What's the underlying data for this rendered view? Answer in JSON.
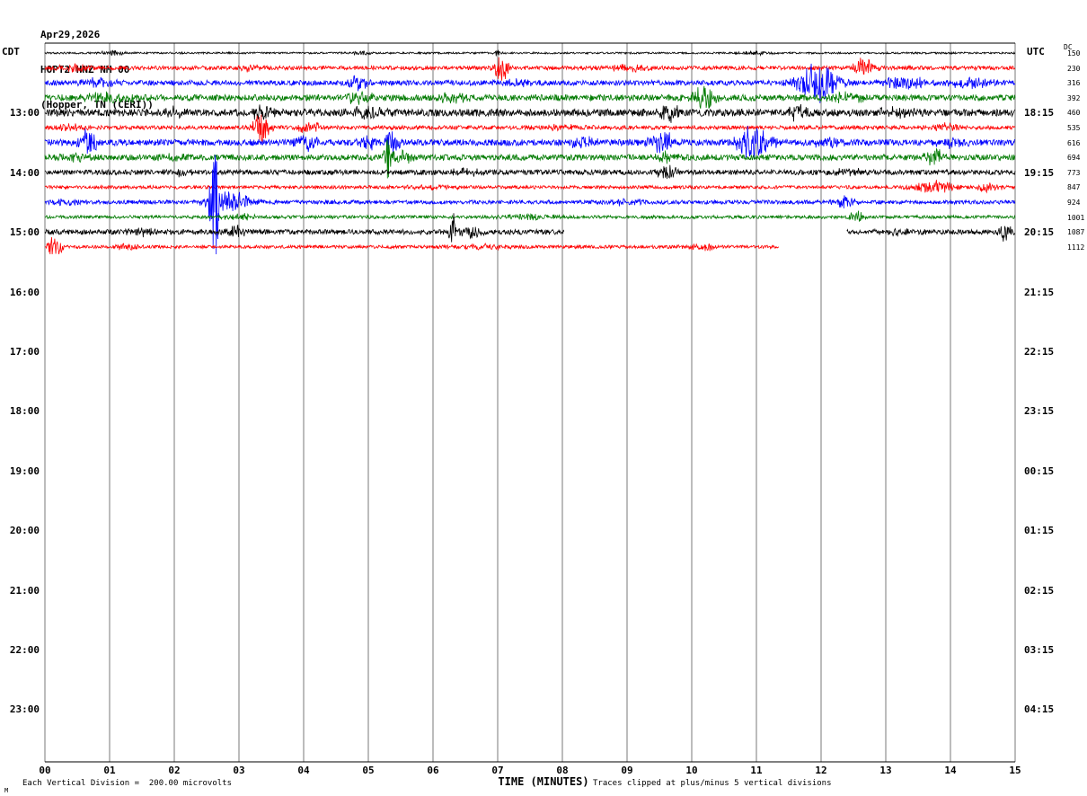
{
  "header": {
    "date": "Apr29,2026",
    "station": "HOPT2 HNZ NM 00",
    "location": "(Hopper, TN (CERI))"
  },
  "axes": {
    "left_title": "CDT",
    "right_title": "UTC",
    "x_title": "TIME (MINUTES)",
    "dc_header": "DC",
    "left_times": [
      "13:00",
      "14:00",
      "15:00",
      "16:00",
      "17:00",
      "18:00",
      "19:00",
      "20:00",
      "21:00",
      "22:00",
      "23:00"
    ],
    "right_times": [
      "18:15",
      "19:15",
      "20:15",
      "21:15",
      "22:15",
      "23:15",
      "00:15",
      "01:15",
      "02:15",
      "03:15",
      "04:15"
    ],
    "x_ticks": [
      "00",
      "01",
      "02",
      "03",
      "04",
      "05",
      "06",
      "07",
      "08",
      "09",
      "10",
      "11",
      "12",
      "13",
      "14",
      "15"
    ],
    "dc_offsets": [
      "150",
      "230",
      "316",
      "392",
      "460",
      "535",
      "616",
      "694",
      "773",
      "847",
      "924",
      "1001",
      "1087",
      "1112"
    ]
  },
  "footer": {
    "left": "Each Vertical Division =  200.00 microvolts",
    "right": "Traces clipped at plus/minus 5 vertical divisions",
    "mark": "M"
  },
  "chart_data": {
    "type": "seismogram-helicorder",
    "title": "HOPT2 HNZ NM 00 (Hopper, TN (CERI)) Apr29,2026",
    "xlabel": "TIME (MINUTES)",
    "x_range_minutes": [
      0,
      15
    ],
    "minutes_per_line": 15,
    "lines_per_hour": 4,
    "vertical_division_microvolts": 200.0,
    "clip_divisions": 5,
    "grid": "vertical-minute-lines",
    "colors_cycle": [
      "#000000",
      "#ff0000",
      "#0000ff",
      "#007a00"
    ],
    "grid_color": "#7a7a7a",
    "traces": [
      {
        "row": 0,
        "color": "#000000",
        "spans": [
          [
            0,
            15
          ]
        ],
        "noise": 1.0,
        "events": [
          {
            "t": 1.05,
            "amp": 2.5,
            "w": 0.15
          },
          {
            "t": 4.9,
            "amp": 2,
            "w": 0.1
          },
          {
            "t": 7.0,
            "amp": 3,
            "w": 0.05
          },
          {
            "t": 11.0,
            "amp": 2,
            "w": 0.2
          }
        ]
      },
      {
        "row": 1,
        "color": "#ff0000",
        "spans": [
          [
            0,
            15
          ]
        ],
        "noise": 2.2,
        "events": [
          {
            "t": 0.5,
            "amp": 4,
            "w": 0.2
          },
          {
            "t": 3.2,
            "amp": 4,
            "w": 0.15
          },
          {
            "t": 7.05,
            "amp": 18,
            "w": 0.07
          },
          {
            "t": 9.0,
            "amp": 3,
            "w": 0.3
          },
          {
            "t": 12.65,
            "amp": 11,
            "w": 0.12
          }
        ]
      },
      {
        "row": 2,
        "color": "#0000ff",
        "spans": [
          [
            0,
            15
          ]
        ],
        "noise": 2.8,
        "events": [
          {
            "t": 0.8,
            "amp": 4,
            "w": 0.2
          },
          {
            "t": 4.85,
            "amp": 7,
            "w": 0.12
          },
          {
            "t": 7.3,
            "amp": 4,
            "w": 0.2
          },
          {
            "t": 11.95,
            "amp": 22,
            "w": 0.22
          },
          {
            "t": 13.3,
            "amp": 6,
            "w": 0.3
          },
          {
            "t": 14.3,
            "amp": 6,
            "w": 0.25
          }
        ]
      },
      {
        "row": 3,
        "color": "#007a00",
        "spans": [
          [
            0,
            15
          ]
        ],
        "noise": 3.5,
        "events": [
          {
            "t": 1.0,
            "amp": 5,
            "w": 0.3
          },
          {
            "t": 4.85,
            "amp": 7,
            "w": 0.15
          },
          {
            "t": 6.3,
            "amp": 4,
            "w": 0.2
          },
          {
            "t": 10.2,
            "amp": 13,
            "w": 0.12
          },
          {
            "t": 12.4,
            "amp": 5,
            "w": 0.2
          }
        ]
      },
      {
        "row": 4,
        "color": "#000000",
        "spans": [
          [
            0,
            15
          ]
        ],
        "noise": 4.0,
        "events": [
          {
            "t": 2.05,
            "amp": 6,
            "w": 0.12
          },
          {
            "t": 3.35,
            "amp": 9,
            "w": 0.1
          },
          {
            "t": 5.0,
            "amp": 5,
            "w": 0.2
          },
          {
            "t": 9.65,
            "amp": 11,
            "w": 0.1
          },
          {
            "t": 11.65,
            "amp": 8,
            "w": 0.1
          },
          {
            "t": 13.2,
            "amp": 5,
            "w": 0.2
          }
        ]
      },
      {
        "row": 5,
        "color": "#ff0000",
        "spans": [
          [
            0,
            15
          ]
        ],
        "noise": 2.2,
        "events": [
          {
            "t": 0.4,
            "amp": 3,
            "w": 0.2
          },
          {
            "t": 3.35,
            "amp": 19,
            "w": 0.09
          },
          {
            "t": 4.1,
            "amp": 6,
            "w": 0.15
          },
          {
            "t": 8.0,
            "amp": 2.5,
            "w": 0.3
          },
          {
            "t": 13.9,
            "amp": 4,
            "w": 0.2
          }
        ]
      },
      {
        "row": 6,
        "color": "#0000ff",
        "spans": [
          [
            0,
            15
          ]
        ],
        "noise": 3.5,
        "events": [
          {
            "t": 0.65,
            "amp": 14,
            "w": 0.1
          },
          {
            "t": 4.05,
            "amp": 9,
            "w": 0.12
          },
          {
            "t": 5.0,
            "amp": 7,
            "w": 0.1
          },
          {
            "t": 5.35,
            "amp": 11,
            "w": 0.1
          },
          {
            "t": 8.3,
            "amp": 5,
            "w": 0.2
          },
          {
            "t": 9.55,
            "amp": 13,
            "w": 0.12
          },
          {
            "t": 10.95,
            "amp": 20,
            "w": 0.18
          },
          {
            "t": 12.1,
            "amp": 6,
            "w": 0.15
          },
          {
            "t": 14.0,
            "amp": 5,
            "w": 0.2
          }
        ]
      },
      {
        "row": 7,
        "color": "#007a00",
        "spans": [
          [
            0,
            15
          ]
        ],
        "noise": 3.2,
        "events": [
          {
            "t": 0.5,
            "amp": 4,
            "w": 0.2
          },
          {
            "t": 2.0,
            "amp": 3,
            "w": 0.2
          },
          {
            "t": 5.3,
            "amp": 24,
            "w": 0.04
          },
          {
            "t": 5.5,
            "amp": 6,
            "w": 0.15
          },
          {
            "t": 9.6,
            "amp": 5,
            "w": 0.15
          },
          {
            "t": 13.75,
            "amp": 9,
            "w": 0.1
          }
        ]
      },
      {
        "row": 8,
        "color": "#000000",
        "spans": [
          [
            0,
            15
          ]
        ],
        "noise": 2.8,
        "events": [
          {
            "t": 2.1,
            "amp": 4,
            "w": 0.15
          },
          {
            "t": 6.5,
            "amp": 3,
            "w": 0.2
          },
          {
            "t": 9.6,
            "amp": 7,
            "w": 0.12
          },
          {
            "t": 12.5,
            "amp": 4,
            "w": 0.2
          }
        ]
      },
      {
        "row": 9,
        "color": "#ff0000",
        "spans": [
          [
            0,
            15
          ]
        ],
        "noise": 1.8,
        "events": [
          {
            "t": 6.0,
            "amp": 2,
            "w": 0.3
          },
          {
            "t": 13.75,
            "amp": 7,
            "w": 0.25
          },
          {
            "t": 14.6,
            "amp": 5,
            "w": 0.15
          }
        ]
      },
      {
        "row": 10,
        "color": "#0000ff",
        "spans": [
          [
            0,
            15
          ]
        ],
        "noise": 2.2,
        "events": [
          {
            "t": 0.3,
            "amp": 3,
            "w": 0.15
          },
          {
            "t": 2.62,
            "amp": 70,
            "w": 0.045
          },
          {
            "t": 2.85,
            "amp": 12,
            "w": 0.25
          },
          {
            "t": 9.0,
            "amp": 3,
            "w": 0.2
          },
          {
            "t": 12.35,
            "amp": 7,
            "w": 0.12
          }
        ]
      },
      {
        "row": 11,
        "color": "#007a00",
        "spans": [
          [
            0,
            15
          ]
        ],
        "noise": 1.8,
        "events": [
          {
            "t": 3.0,
            "amp": 3,
            "w": 0.2
          },
          {
            "t": 7.5,
            "amp": 2.5,
            "w": 0.3
          },
          {
            "t": 12.55,
            "amp": 9,
            "w": 0.07
          }
        ]
      },
      {
        "row": 12,
        "color": "#000000",
        "spans": [
          [
            0,
            8.03
          ],
          [
            12.4,
            15
          ]
        ],
        "noise": 2.8,
        "events": [
          {
            "t": 1.5,
            "amp": 4,
            "w": 0.15
          },
          {
            "t": 2.95,
            "amp": 7,
            "w": 0.1
          },
          {
            "t": 6.3,
            "amp": 22,
            "w": 0.04
          },
          {
            "t": 6.55,
            "amp": 7,
            "w": 0.12
          },
          {
            "t": 13.2,
            "amp": 3,
            "w": 0.2
          },
          {
            "t": 14.85,
            "amp": 9,
            "w": 0.08
          }
        ]
      },
      {
        "row": 13,
        "color": "#ff0000",
        "spans": [
          [
            0,
            11.35
          ]
        ],
        "noise": 1.8,
        "events": [
          {
            "t": 0.15,
            "amp": 11,
            "w": 0.09
          },
          {
            "t": 1.3,
            "amp": 3,
            "w": 0.15
          },
          {
            "t": 6.8,
            "amp": 2.5,
            "w": 0.3
          },
          {
            "t": 10.2,
            "amp": 4,
            "w": 0.2
          }
        ]
      }
    ]
  }
}
